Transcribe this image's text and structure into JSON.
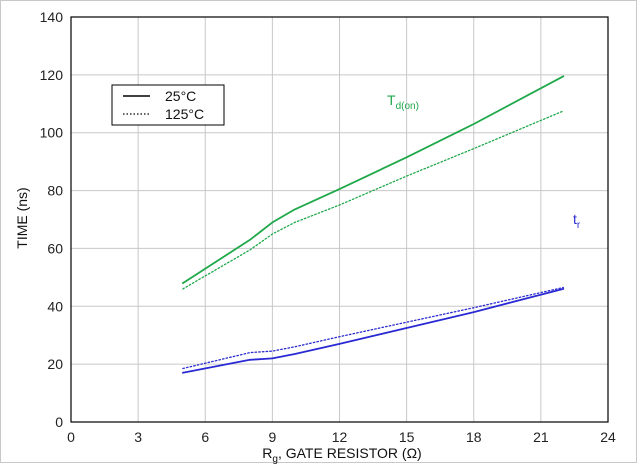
{
  "chart_data": {
    "type": "line",
    "xlabel": {
      "main": "R",
      "sub": "g",
      "rest": ", GATE RESISTOR (Ω)"
    },
    "ylabel": "TIME (ns)",
    "xlim": [
      0,
      24
    ],
    "ylim": [
      0,
      140
    ],
    "xticks": [
      0,
      3,
      6,
      9,
      12,
      15,
      18,
      21,
      24
    ],
    "yticks": [
      0,
      20,
      40,
      60,
      80,
      100,
      120,
      140
    ],
    "grid": true,
    "legend": {
      "position": "top-left",
      "entries": [
        {
          "label": "25°C",
          "style": "solid"
        },
        {
          "label": "125°C",
          "style": "dotted"
        }
      ]
    },
    "annotations": [
      {
        "id": "td_on",
        "main": "T",
        "sub": "d(on)",
        "color": "#1fa84a"
      },
      {
        "id": "tr",
        "main": "t",
        "sub": "r",
        "color": "#2a2ad4"
      }
    ],
    "series": [
      {
        "group": "td_on",
        "temp": "25°C",
        "style": "solid",
        "color": "#1fa84a",
        "x": [
          5,
          8,
          9,
          10,
          12,
          15,
          18,
          22
        ],
        "y": [
          48,
          63,
          69,
          73.5,
          80.5,
          91.5,
          103,
          119.5
        ]
      },
      {
        "group": "td_on",
        "temp": "125°C",
        "style": "dotted",
        "color": "#1fa84a",
        "x": [
          5,
          8,
          9,
          10,
          12,
          15,
          18,
          22
        ],
        "y": [
          46,
          59.5,
          65,
          69,
          75,
          85,
          94.5,
          107.5
        ]
      },
      {
        "group": "tr",
        "temp": "25°C",
        "style": "solid",
        "color": "#2a2ad4",
        "x": [
          5,
          8,
          9,
          10,
          12,
          15,
          18,
          22
        ],
        "y": [
          17,
          21.5,
          22,
          23.5,
          27,
          32.5,
          38,
          46
        ]
      },
      {
        "group": "tr",
        "temp": "125°C",
        "style": "dotted",
        "color": "#2a2ad4",
        "x": [
          5,
          8,
          9,
          10,
          12,
          15,
          18,
          22
        ],
        "y": [
          18.5,
          24,
          24.5,
          26,
          29.5,
          34.5,
          39.5,
          46.5
        ]
      }
    ]
  }
}
